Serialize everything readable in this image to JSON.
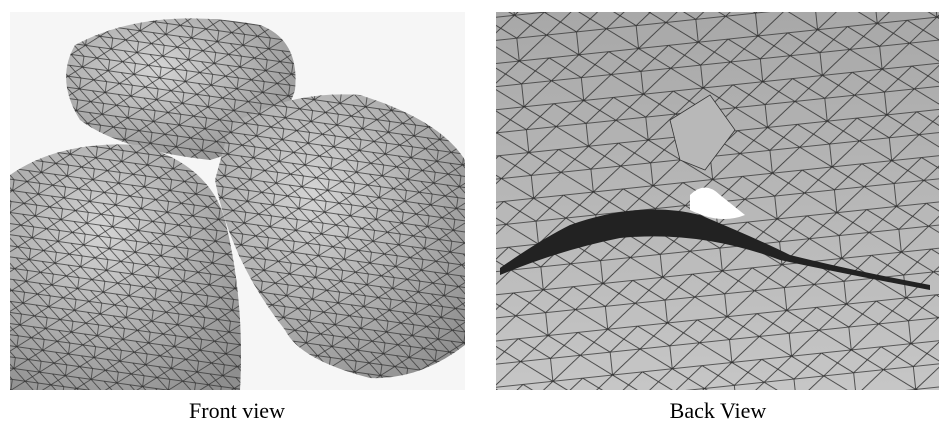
{
  "panels": [
    {
      "caption": "Front view"
    },
    {
      "caption": "Back View"
    }
  ]
}
